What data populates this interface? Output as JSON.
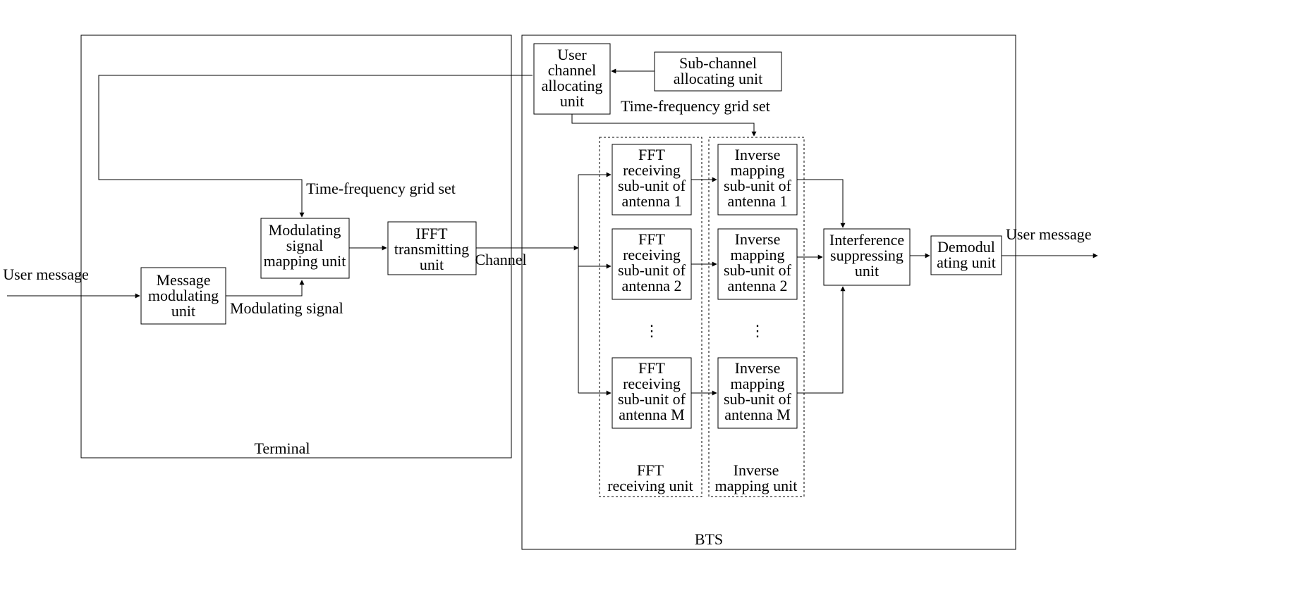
{
  "terminal": {
    "container_label": "Terminal",
    "io_in": "User message",
    "msg_mod": "Message\nmodulating\nunit",
    "mod_signal_label": "Modulating signal",
    "map_unit": "Modulating\nsignal\nmapping unit",
    "ifft": "IFFT\ntransmitting\nunit",
    "tf_grid_label": "Time-frequency grid set",
    "channel_label": "Channel"
  },
  "bts": {
    "container_label": "BTS",
    "user_chan_alloc": "User\nchannel\nallocating\nunit",
    "sub_chan_alloc": "Sub-channel\nallocating unit",
    "tf_grid_label": "Time-frequency grid set",
    "fft_unit_label": "FFT\nreceiving unit",
    "inv_unit_label": "Inverse\nmapping unit",
    "fft1": "FFT\nreceiving\nsub-unit of\nantenna 1",
    "fft2": "FFT\nreceiving\nsub-unit of\nantenna 2",
    "fftM": "FFT\nreceiving\nsub-unit of\nantenna M",
    "inv1": "Inverse\nmapping\nsub-unit of\nantenna 1",
    "inv2": "Inverse\nmapping\nsub-unit of\nantenna 2",
    "invM": "Inverse\nmapping\nsub-unit of\nantenna M",
    "interf": "Interference\nsuppressing\nunit",
    "demod": "Demodul\nating unit",
    "io_out": "User message"
  },
  "style": {
    "font_size": 22,
    "bg": "#ffffff",
    "stroke": "#000000"
  }
}
